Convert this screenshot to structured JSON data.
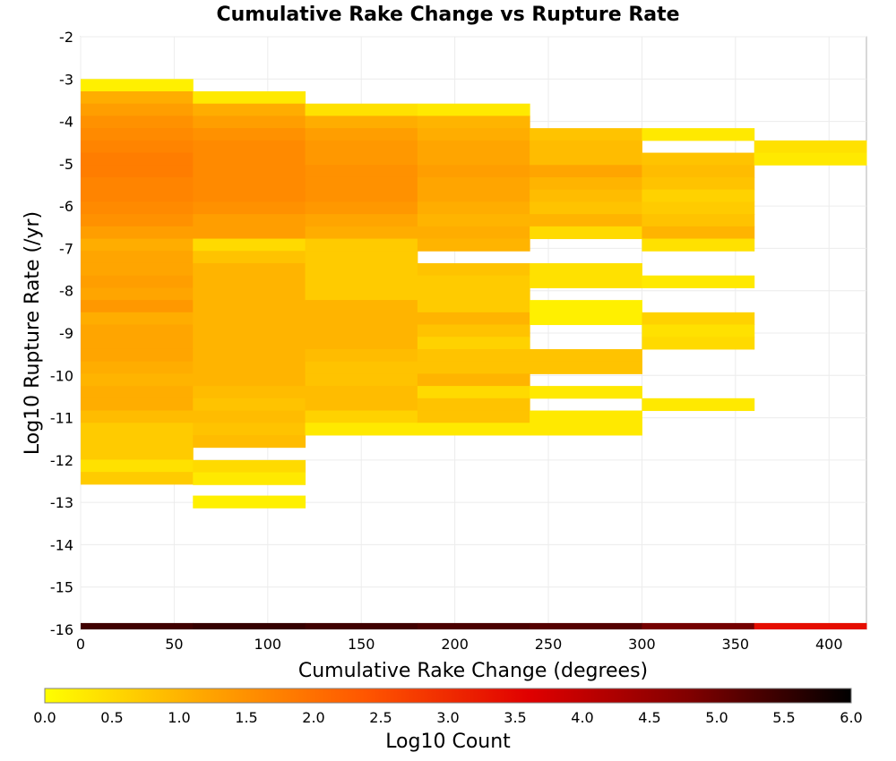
{
  "chart_data": {
    "type": "heatmap",
    "title": "Cumulative Rake Change vs Rupture Rate",
    "xlabel": "Cumulative Rake Change (degrees)",
    "ylabel": "Log10 Rupture Rate (/yr)",
    "xlim": [
      0,
      420
    ],
    "ylim": [
      -16,
      -2
    ],
    "x_ticks": [
      "0",
      "50",
      "100",
      "150",
      "200",
      "250",
      "300",
      "350",
      "400"
    ],
    "y_ticks": [
      "-16",
      "-15",
      "-14",
      "-13",
      "-12",
      "-11",
      "-10",
      "-9",
      "-8",
      "-7",
      "-6",
      "-5",
      "-4",
      "-3",
      "-2"
    ],
    "grid": true,
    "x_bin_width": 60,
    "y_bin_height": 0.29,
    "cell_value_units": "log10 count",
    "columns": [
      {
        "x_start": 0,
        "cells": [
          [
            -3.0,
            0.2
          ],
          [
            -3.29,
            1.1
          ],
          [
            -3.58,
            1.3
          ],
          [
            -3.87,
            1.5
          ],
          [
            -4.16,
            1.6
          ],
          [
            -4.45,
            1.7
          ],
          [
            -4.74,
            1.8
          ],
          [
            -5.03,
            1.8
          ],
          [
            -5.32,
            1.7
          ],
          [
            -5.61,
            1.7
          ],
          [
            -5.9,
            1.6
          ],
          [
            -6.19,
            1.5
          ],
          [
            -6.48,
            1.3
          ],
          [
            -6.77,
            1.1
          ],
          [
            -7.06,
            1.2
          ],
          [
            -7.35,
            1.2
          ],
          [
            -7.64,
            1.3
          ],
          [
            -7.93,
            1.2
          ],
          [
            -8.22,
            1.4
          ],
          [
            -8.51,
            1.1
          ],
          [
            -8.8,
            1.2
          ],
          [
            -9.09,
            1.2
          ],
          [
            -9.38,
            1.2
          ],
          [
            -9.67,
            1.1
          ],
          [
            -9.96,
            1.0
          ],
          [
            -10.25,
            1.1
          ],
          [
            -10.54,
            1.1
          ],
          [
            -10.83,
            0.9
          ],
          [
            -11.12,
            0.7
          ],
          [
            -11.41,
            0.7
          ],
          [
            -11.7,
            0.7
          ],
          [
            -11.99,
            0.4
          ],
          [
            -12.28,
            0.7
          ]
        ]
      },
      {
        "x_start": 60,
        "cells": [
          [
            -3.29,
            0.3
          ],
          [
            -3.58,
            1.1
          ],
          [
            -3.87,
            1.3
          ],
          [
            -4.16,
            1.5
          ],
          [
            -4.45,
            1.6
          ],
          [
            -4.74,
            1.6
          ],
          [
            -5.03,
            1.6
          ],
          [
            -5.32,
            1.6
          ],
          [
            -5.61,
            1.6
          ],
          [
            -5.9,
            1.5
          ],
          [
            -6.19,
            1.3
          ],
          [
            -6.48,
            1.3
          ],
          [
            -6.77,
            0.5
          ],
          [
            -7.06,
            0.8
          ],
          [
            -7.35,
            1.0
          ],
          [
            -7.64,
            1.0
          ],
          [
            -7.93,
            1.0
          ],
          [
            -8.22,
            1.0
          ],
          [
            -8.51,
            1.0
          ],
          [
            -8.8,
            1.0
          ],
          [
            -9.09,
            1.0
          ],
          [
            -9.38,
            1.0
          ],
          [
            -9.67,
            1.0
          ],
          [
            -9.96,
            1.0
          ],
          [
            -10.25,
            0.9
          ],
          [
            -10.54,
            0.8
          ],
          [
            -10.83,
            0.9
          ],
          [
            -11.12,
            0.8
          ],
          [
            -11.41,
            0.9
          ],
          [
            -12.0,
            0.5
          ],
          [
            -12.29,
            0.3
          ],
          [
            -12.84,
            0.2
          ]
        ]
      },
      {
        "x_start": 120,
        "cells": [
          [
            -3.58,
            0.4
          ],
          [
            -3.87,
            1.1
          ],
          [
            -4.16,
            1.3
          ],
          [
            -4.45,
            1.4
          ],
          [
            -4.74,
            1.4
          ],
          [
            -5.03,
            1.5
          ],
          [
            -5.32,
            1.5
          ],
          [
            -5.61,
            1.5
          ],
          [
            -5.9,
            1.4
          ],
          [
            -6.19,
            1.2
          ],
          [
            -6.48,
            1.1
          ],
          [
            -6.77,
            0.7
          ],
          [
            -7.06,
            0.7
          ],
          [
            -7.35,
            0.7
          ],
          [
            -7.64,
            0.7
          ],
          [
            -7.93,
            0.7
          ],
          [
            -8.22,
            1.0
          ],
          [
            -8.51,
            1.0
          ],
          [
            -8.8,
            1.0
          ],
          [
            -9.09,
            1.0
          ],
          [
            -9.38,
            0.9
          ],
          [
            -9.67,
            0.8
          ],
          [
            -9.96,
            0.8
          ],
          [
            -10.25,
            0.9
          ],
          [
            -10.54,
            0.9
          ],
          [
            -10.83,
            0.6
          ],
          [
            -11.12,
            0.3
          ]
        ]
      },
      {
        "x_start": 180,
        "cells": [
          [
            -3.58,
            0.3
          ],
          [
            -3.87,
            1.0
          ],
          [
            -4.16,
            1.1
          ],
          [
            -4.45,
            1.2
          ],
          [
            -4.74,
            1.2
          ],
          [
            -5.03,
            1.3
          ],
          [
            -5.32,
            1.2
          ],
          [
            -5.61,
            1.2
          ],
          [
            -5.9,
            1.1
          ],
          [
            -6.19,
            1.0
          ],
          [
            -6.48,
            1.1
          ],
          [
            -6.77,
            1.0
          ],
          [
            -7.35,
            0.8
          ],
          [
            -7.64,
            0.7
          ],
          [
            -7.93,
            0.7
          ],
          [
            -8.22,
            0.7
          ],
          [
            -8.51,
            1.0
          ],
          [
            -8.8,
            0.8
          ],
          [
            -9.09,
            0.6
          ],
          [
            -9.38,
            0.8
          ],
          [
            -9.67,
            0.8
          ],
          [
            -9.96,
            1.0
          ],
          [
            -10.25,
            0.5
          ],
          [
            -10.54,
            0.8
          ],
          [
            -10.83,
            0.8
          ],
          [
            -11.12,
            0.3
          ]
        ]
      },
      {
        "x_start": 240,
        "cells": [
          [
            -4.16,
            0.8
          ],
          [
            -4.45,
            0.9
          ],
          [
            -4.74,
            0.9
          ],
          [
            -5.03,
            1.2
          ],
          [
            -5.32,
            1.0
          ],
          [
            -5.61,
            0.9
          ],
          [
            -5.9,
            0.8
          ],
          [
            -6.19,
            1.0
          ],
          [
            -6.48,
            0.5
          ],
          [
            -7.35,
            0.4
          ],
          [
            -7.64,
            0.4
          ],
          [
            -8.22,
            0.2
          ],
          [
            -8.51,
            0.2
          ],
          [
            -9.38,
            0.8
          ],
          [
            -9.67,
            0.8
          ],
          [
            -10.25,
            0.3
          ],
          [
            -10.83,
            0.3
          ],
          [
            -11.12,
            0.3
          ]
        ]
      },
      {
        "x_start": 300,
        "cells": [
          [
            -4.16,
            0.3
          ],
          [
            -4.74,
            0.8
          ],
          [
            -5.03,
            0.9
          ],
          [
            -5.32,
            0.8
          ],
          [
            -5.61,
            0.6
          ],
          [
            -5.9,
            0.7
          ],
          [
            -6.19,
            0.8
          ],
          [
            -6.48,
            1.0
          ],
          [
            -6.77,
            0.4
          ],
          [
            -7.64,
            0.3
          ],
          [
            -8.51,
            0.6
          ],
          [
            -8.8,
            0.4
          ],
          [
            -9.09,
            0.5
          ],
          [
            -10.54,
            0.3
          ]
        ]
      },
      {
        "x_start": 360,
        "cells": [
          [
            -4.45,
            0.4
          ],
          [
            -4.74,
            0.3
          ]
        ]
      }
    ],
    "bottom_strip": {
      "y": -15.85,
      "cells": [
        {
          "x_start": 0,
          "value": 5.4
        },
        {
          "x_start": 60,
          "value": 5.5
        },
        {
          "x_start": 120,
          "value": 5.4
        },
        {
          "x_start": 180,
          "value": 5.3
        },
        {
          "x_start": 240,
          "value": 5.2
        },
        {
          "x_start": 300,
          "value": 4.9
        },
        {
          "x_start": 360,
          "value": 3.4
        }
      ]
    },
    "colorbar": {
      "label": "Log10 Count",
      "min": 0.0,
      "max": 6.0,
      "ticks": [
        "0.0",
        "0.5",
        "1.0",
        "1.5",
        "2.0",
        "2.5",
        "3.0",
        "3.5",
        "4.0",
        "4.5",
        "5.0",
        "5.5",
        "6.0"
      ],
      "colors": [
        "#ffff00",
        "#ffa500",
        "#ff5500",
        "#e00000",
        "#800000",
        "#000000"
      ]
    }
  }
}
